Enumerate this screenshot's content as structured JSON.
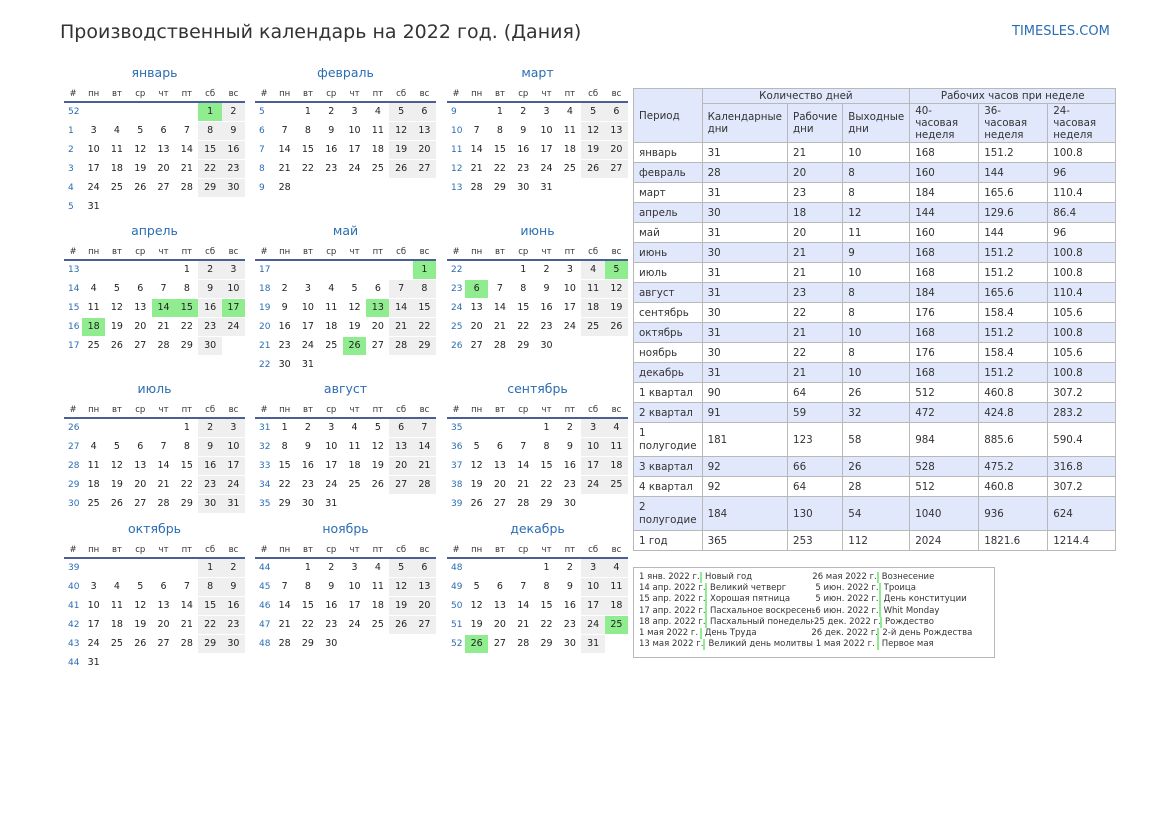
{
  "title": "Производственный календарь на 2022 год. (Дания)",
  "site": "TIMESLES.COM",
  "weekday_headers": [
    "#",
    "пн",
    "вт",
    "ср",
    "чт",
    "пт",
    "сб",
    "вс"
  ],
  "months": [
    {
      "name": "январь",
      "start_weekday": 5,
      "days": 31,
      "first_week": 52,
      "holidays": [
        1
      ]
    },
    {
      "name": "февраль",
      "start_weekday": 1,
      "days": 28,
      "first_week": 5,
      "holidays": []
    },
    {
      "name": "март",
      "start_weekday": 1,
      "days": 31,
      "first_week": 9,
      "holidays": []
    },
    {
      "name": "апрель",
      "start_weekday": 4,
      "days": 30,
      "first_week": 13,
      "holidays": [
        14,
        15,
        17,
        18
      ]
    },
    {
      "name": "май",
      "start_weekday": 6,
      "days": 31,
      "first_week": 17,
      "holidays": [
        1,
        13,
        26
      ]
    },
    {
      "name": "июнь",
      "start_weekday": 2,
      "days": 30,
      "first_week": 22,
      "holidays": [
        5,
        6
      ]
    },
    {
      "name": "июль",
      "start_weekday": 4,
      "days": 31,
      "first_week": 26,
      "holidays": []
    },
    {
      "name": "август",
      "start_weekday": 0,
      "days": 31,
      "first_week": 31,
      "holidays": []
    },
    {
      "name": "сентябрь",
      "start_weekday": 3,
      "days": 30,
      "first_week": 35,
      "holidays": []
    },
    {
      "name": "октябрь",
      "start_weekday": 5,
      "days": 31,
      "first_week": 39,
      "holidays": []
    },
    {
      "name": "ноябрь",
      "start_weekday": 1,
      "days": 30,
      "first_week": 44,
      "holidays": []
    },
    {
      "name": "декабрь",
      "start_weekday": 3,
      "days": 31,
      "first_week": 48,
      "holidays": [
        25,
        26
      ]
    }
  ],
  "summary": {
    "headers": {
      "period": "Период",
      "days_group": "Количество дней",
      "hours_group": "Рабочих часов при неделе",
      "calendar": "Календарные дни",
      "working": "Рабочие дни",
      "weekend": "Выходные дни",
      "h40": "40-часовая неделя",
      "h36": "36-часовая неделя",
      "h24": "24-часовая неделя"
    },
    "rows": [
      {
        "period": "январь",
        "cal": "31",
        "work": "21",
        "off": "10",
        "h40": "168",
        "h36": "151.2",
        "h24": "100.8"
      },
      {
        "period": "февраль",
        "cal": "28",
        "work": "20",
        "off": "8",
        "h40": "160",
        "h36": "144",
        "h24": "96"
      },
      {
        "period": "март",
        "cal": "31",
        "work": "23",
        "off": "8",
        "h40": "184",
        "h36": "165.6",
        "h24": "110.4"
      },
      {
        "period": "апрель",
        "cal": "30",
        "work": "18",
        "off": "12",
        "h40": "144",
        "h36": "129.6",
        "h24": "86.4"
      },
      {
        "period": "май",
        "cal": "31",
        "work": "20",
        "off": "11",
        "h40": "160",
        "h36": "144",
        "h24": "96"
      },
      {
        "period": "июнь",
        "cal": "30",
        "work": "21",
        "off": "9",
        "h40": "168",
        "h36": "151.2",
        "h24": "100.8"
      },
      {
        "period": "июль",
        "cal": "31",
        "work": "21",
        "off": "10",
        "h40": "168",
        "h36": "151.2",
        "h24": "100.8"
      },
      {
        "period": "август",
        "cal": "31",
        "work": "23",
        "off": "8",
        "h40": "184",
        "h36": "165.6",
        "h24": "110.4"
      },
      {
        "period": "сентябрь",
        "cal": "30",
        "work": "22",
        "off": "8",
        "h40": "176",
        "h36": "158.4",
        "h24": "105.6"
      },
      {
        "period": "октябрь",
        "cal": "31",
        "work": "21",
        "off": "10",
        "h40": "168",
        "h36": "151.2",
        "h24": "100.8"
      },
      {
        "period": "ноябрь",
        "cal": "30",
        "work": "22",
        "off": "8",
        "h40": "176",
        "h36": "158.4",
        "h24": "105.6"
      },
      {
        "period": "декабрь",
        "cal": "31",
        "work": "21",
        "off": "10",
        "h40": "168",
        "h36": "151.2",
        "h24": "100.8"
      },
      {
        "period": "1 квартал",
        "cal": "90",
        "work": "64",
        "off": "26",
        "h40": "512",
        "h36": "460.8",
        "h24": "307.2"
      },
      {
        "period": "2 квартал",
        "cal": "91",
        "work": "59",
        "off": "32",
        "h40": "472",
        "h36": "424.8",
        "h24": "283.2"
      },
      {
        "period": "1 полугодие",
        "cal": "181",
        "work": "123",
        "off": "58",
        "h40": "984",
        "h36": "885.6",
        "h24": "590.4"
      },
      {
        "period": "3 квартал",
        "cal": "92",
        "work": "66",
        "off": "26",
        "h40": "528",
        "h36": "475.2",
        "h24": "316.8"
      },
      {
        "period": "4 квартал",
        "cal": "92",
        "work": "64",
        "off": "28",
        "h40": "512",
        "h36": "460.8",
        "h24": "307.2"
      },
      {
        "period": "2 полугодие",
        "cal": "184",
        "work": "130",
        "off": "54",
        "h40": "1040",
        "h36": "936",
        "h24": "624"
      },
      {
        "period": "1 год",
        "cal": "365",
        "work": "253",
        "off": "112",
        "h40": "2024",
        "h36": "1821.6",
        "h24": "1214.4"
      }
    ]
  },
  "holidays_list": [
    {
      "date": "1 янв. 2022 г.",
      "name": "Новый год"
    },
    {
      "date": "14 апр. 2022 г.",
      "name": "Великий четверг"
    },
    {
      "date": "15 апр. 2022 г.",
      "name": "Хорошая пятница"
    },
    {
      "date": "17 апр. 2022 г.",
      "name": "Пасхальное воскресенье"
    },
    {
      "date": "18 апр. 2022 г.",
      "name": "Пасхальный понедельник"
    },
    {
      "date": "1 мая 2022 г.",
      "name": "День Труда"
    },
    {
      "date": "13 мая 2022 г.",
      "name": "Великий день молитвы"
    },
    {
      "date": "26 мая 2022 г.",
      "name": "Вознесение"
    },
    {
      "date": "5 июн. 2022 г.",
      "name": "Троица"
    },
    {
      "date": "5 июн. 2022 г.",
      "name": "День конституции"
    },
    {
      "date": "6 июн. 2022 г.",
      "name": "Whit Monday"
    },
    {
      "date": "25 дек. 2022 г.",
      "name": "Рождество"
    },
    {
      "date": "26 дек. 2022 г.",
      "name": "2-й день Рождества"
    },
    {
      "date": "1 мая 2022 г.",
      "name": "Первое мая"
    }
  ]
}
